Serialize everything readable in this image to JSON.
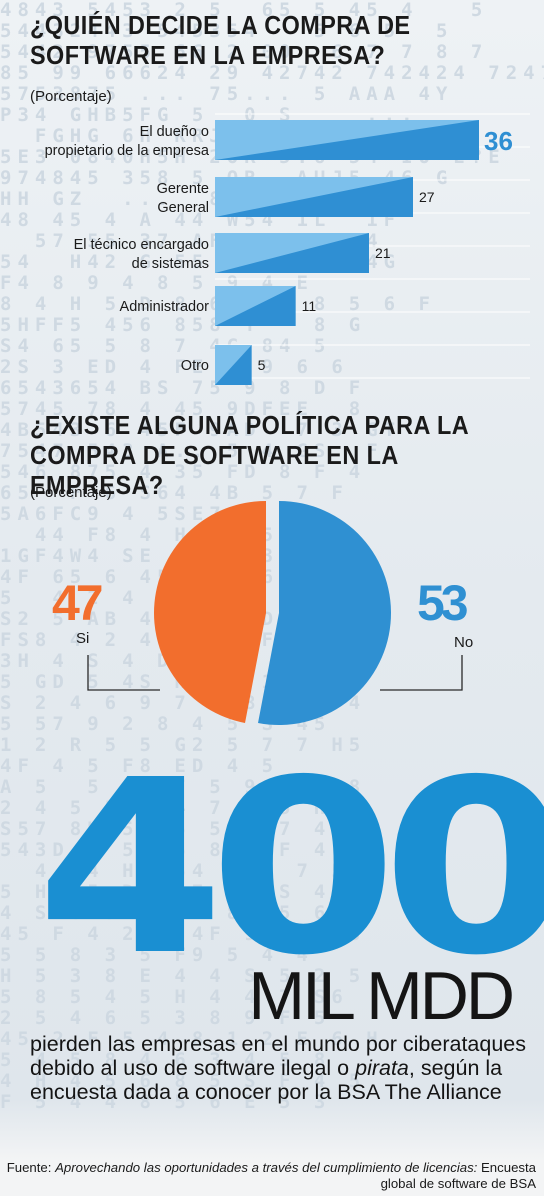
{
  "header1": {
    "title_line1": "¿QUIÉN DECIDE LA COMPRA DE",
    "title_line2": "SOFTWARE EN LA EMPRESA?",
    "subtitle": "(Porcentaje)"
  },
  "header2": {
    "title_line1": "¿EXISTE ALGUNA POLÍTICA PARA LA",
    "title_line2": "COMPRA DE SOFTWARE EN LA EMPRESA?",
    "subtitle": "(Porcentaje)"
  },
  "chart_data": [
    {
      "type": "bar",
      "orientation": "horizontal",
      "title": "¿QUIÉN DECIDE LA COMPRA DE SOFTWARE EN LA EMPRESA?",
      "subtitle": "(Porcentaje)",
      "categories": [
        [
          "El dueño o",
          "propietario de la empresa"
        ],
        [
          "Gerente",
          "General"
        ],
        [
          "El técnico encargado",
          "de sistemas"
        ],
        [
          "Administrador"
        ],
        [
          "Otro"
        ]
      ],
      "values": [
        36,
        27,
        21,
        11,
        5
      ],
      "grid": true,
      "colors": {
        "bar_dark": "#2f8fd3",
        "bar_light": "#7cc0ec",
        "top_label": "#2f8fd3"
      }
    },
    {
      "type": "pie",
      "title": "¿EXISTE ALGUNA POLÍTICA PARA LA COMPRA DE SOFTWARE EN LA EMPRESA?",
      "subtitle": "(Porcentaje)",
      "slices": [
        {
          "label": "Si",
          "value": 47,
          "color": "#f26e2d"
        },
        {
          "label": "No",
          "value": 53,
          "color": "#2f90d2"
        }
      ]
    }
  ],
  "highlight": {
    "number": "400",
    "unit": "MIL MDD",
    "description_pre": "pierden las empresas en el mundo por ciberataques debido al uso de software ilegal o ",
    "description_italic": "pirata",
    "description_post": ", según la encuesta dada a conocer por la BSA The Alliance"
  },
  "source": {
    "label": "Fuente: ",
    "italic_1": "Aprovechando las oportunidades a través del cumplimiento de licencias:",
    "text_2": " Encuesta global de software de BSA"
  },
  "background_pattern": [
    "4843 5453 2 5  65 5 45 4   5",
    "54432443 545354   5 6 5  5",
    "5442 9755 66 2 00  6 7 7 8 7",
    "85 99 66624 29 42742 742424 7247",
    "5753875 ... 75... 5 AAA 4Y",
    "P34 GHB5FG 5  0 S    ...",
    "  FGHG 6H KRJ 5Y5  G B  5G",
    "5E3 0840H5H 2OR 5.6 54 IO E?E",
    "974845 358 5 OR  AUJ5 46 G",
    "HH GZ  ...  8  CE ... 4",
    "48 45 4 A 44 W54 1L  1F",
    "  57 55 37 AF V 5.8  4",
    "54  H42 G 55 F79 5R  4G",
    "F4 8 9 4 8 5 9 4 E",
    "8 4 H 5 D 8 6 5 4 8 5 6 F",
    "5HFF5 456 858 Y   8 G",
    "S4 65 5 8 7 4G 84 5",
    "2S 3 ED 4 FE 9 9 6 6",
    "6543654 BS 75 9 8 D F",
    "5745 78 4 45 9DFEE  8",
    "4B543 6 45F 9AD  7 3 GT",
    "7547 543 A.. 5 4 GS  F",
    "546 875 4 35 FD 8 F 4",
    "65  F 6 S64 4B 5 7 F",
    "5A6FC9 4 5SE7 8 98",
    "  44 F8 4 HF H 5 9 1",
    "1GF4W4 SE 45 S53 53",
    "4F 65 6 453 44 6 5 D",
    "5  4 2 4 6 5F 5 4 68",
    "S2 5 AB 43 S 4 D 1 A",
    "FS8 4 2 4 48 3 F 5",
    "3H 4 S 4 D 67 8 4 4 5",
    "5 GD 5 4S H8 R 1 5 5",
    "S 2 4 6 9 7 D 8 5 5 4",
    "5 57 9 2 8 4 5 S 45",
    "1 2 R 5 5 G2 5 7 7 H5",
    "4F 4 5 F8 ED 4 5",
    "A 5  5  4 7 5 9 4 6 8",
    "2 4 5 5 4 4 7 6 5 H 2",
    "S57 8H 5 75 5 8 7 4",
    "543D 4 5F 5 8 E F 4",
    "  4 84 HF 54 5 5 7 5",
    "5 HA 5 D4 57 6 5S 4",
    "4 S 6 5 54 D 87 5 6 S",
    "45 F 4 2 5 4F 9 5 5 8",
    "5 5 8 3 5 F9 5 4 4",
    "H 5 3 8 E 4 4 S 5 2 5",
    "5 8 5 4 5 H 4 4 7 S6",
    "2 5 4 6 5 3 8 9 F 5",
    "45 2 F 5 4 8 1 2 E 6 H",
    "5 4 5 8 4 6 3 4 5 8",
    "4 H 4 5 6 8 5 S F 4 5",
    "F 5 4 4 8 5 6 E 5 3"
  ]
}
